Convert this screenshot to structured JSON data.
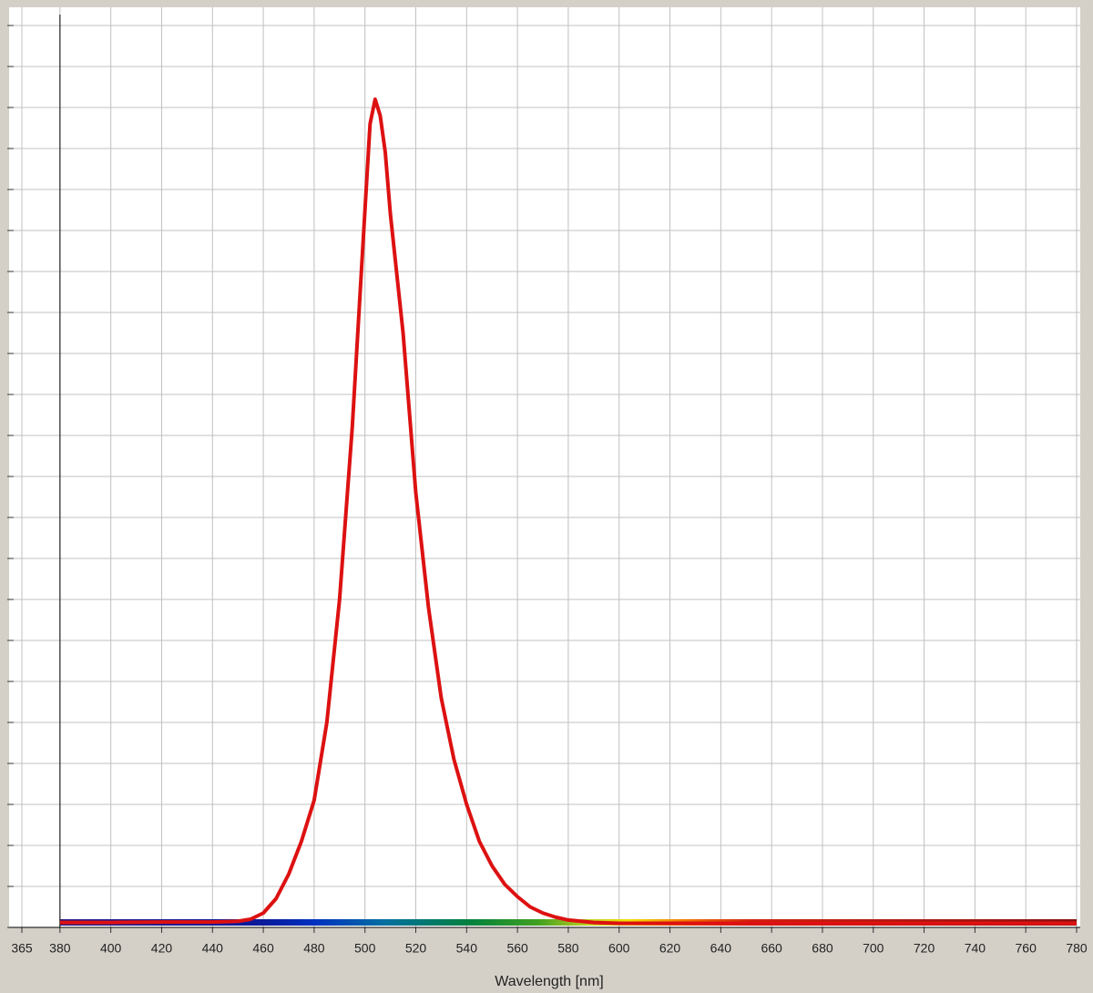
{
  "chart_data": {
    "type": "line",
    "x_label": "Wavelength [nm]",
    "x": [
      380,
      400,
      420,
      440,
      450,
      455,
      460,
      465,
      470,
      475,
      480,
      485,
      490,
      495,
      500,
      502,
      504,
      506,
      508,
      510,
      515,
      520,
      525,
      530,
      535,
      540,
      545,
      550,
      555,
      560,
      565,
      570,
      575,
      580,
      590,
      600,
      650,
      700,
      750,
      780
    ],
    "series": [
      {
        "color": "#dd1111",
        "values": [
          0.12,
          0.12,
          0.13,
          0.13,
          0.15,
          0.2,
          0.35,
          0.7,
          1.3,
          2.1,
          3.1,
          5.0,
          8.0,
          12.2,
          17.5,
          19.6,
          20.2,
          19.8,
          18.9,
          17.4,
          14.5,
          10.6,
          7.8,
          5.6,
          4.1,
          3.0,
          2.1,
          1.5,
          1.05,
          0.75,
          0.5,
          0.35,
          0.25,
          0.18,
          0.12,
          0.1,
          0.1,
          0.1,
          0.1,
          0.1
        ]
      }
    ],
    "xlim": [
      365,
      780
    ],
    "xticks": [
      365,
      380,
      400,
      420,
      440,
      460,
      480,
      500,
      520,
      540,
      560,
      580,
      600,
      620,
      640,
      660,
      680,
      700,
      720,
      740,
      760,
      780
    ],
    "ylim": [
      0,
      22
    ],
    "yticks": [
      0,
      1,
      2,
      3,
      4,
      5,
      6,
      7,
      8,
      9,
      10,
      11,
      12,
      13,
      14,
      15,
      16,
      17,
      18,
      19,
      20,
      21,
      22
    ],
    "grid": true
  }
}
